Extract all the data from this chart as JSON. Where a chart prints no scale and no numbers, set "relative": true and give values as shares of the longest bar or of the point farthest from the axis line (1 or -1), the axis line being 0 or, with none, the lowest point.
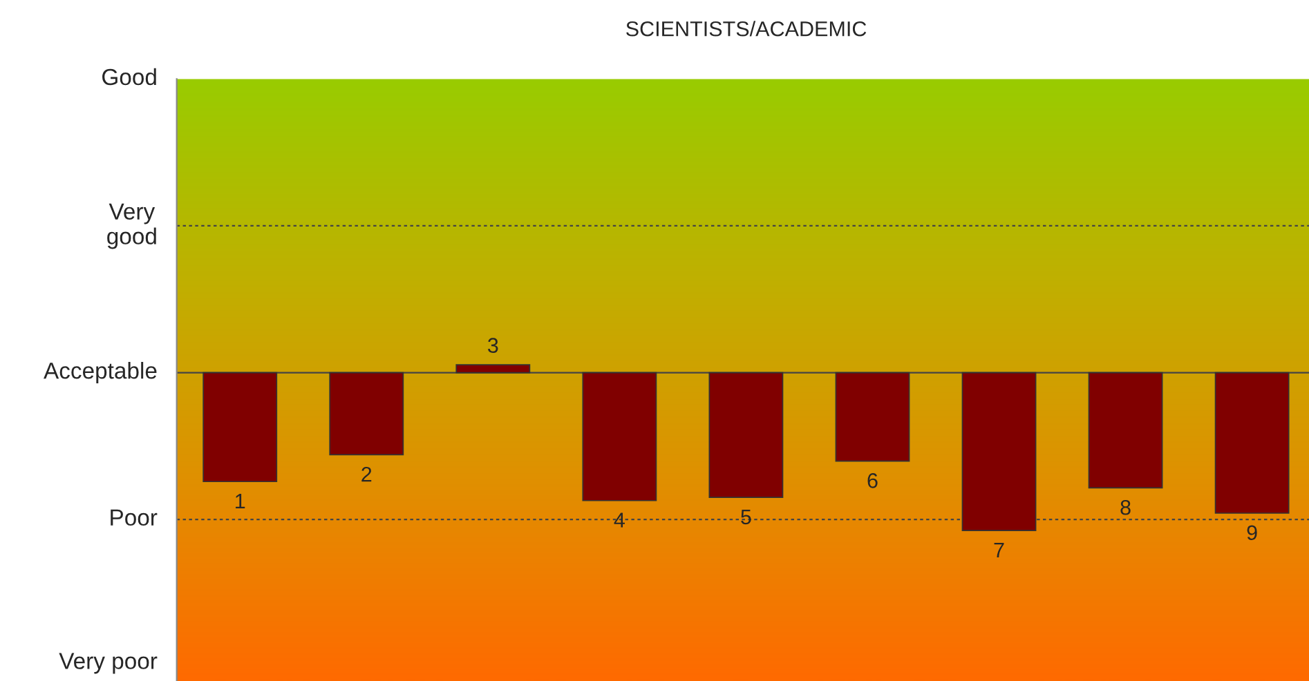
{
  "chart_data": {
    "type": "bar",
    "title": "SCIENTISTS/ACADEMIC",
    "categories": [
      "1",
      "2",
      "3",
      "4",
      "5",
      "6",
      "7",
      "8",
      "9"
    ],
    "values": [
      -0.69,
      -0.52,
      0.05,
      -0.81,
      -0.79,
      -0.56,
      -1,
      -0.73,
      -0.89
    ],
    "relative": true,
    "color": "#800000",
    "annotations": [
      "Good",
      "Very poor"
    ],
    "ref_lines": [
      {
        "axis": "y",
        "value": 0.93,
        "label": "Very\ngood",
        "line_style": "dotted"
      },
      {
        "axis": "y",
        "value": 0,
        "label": "Acceptable",
        "line_style": "solid"
      },
      {
        "axis": "y",
        "value": -0.93,
        "label": "Poor",
        "line_style": "dotted"
      }
    ]
  }
}
